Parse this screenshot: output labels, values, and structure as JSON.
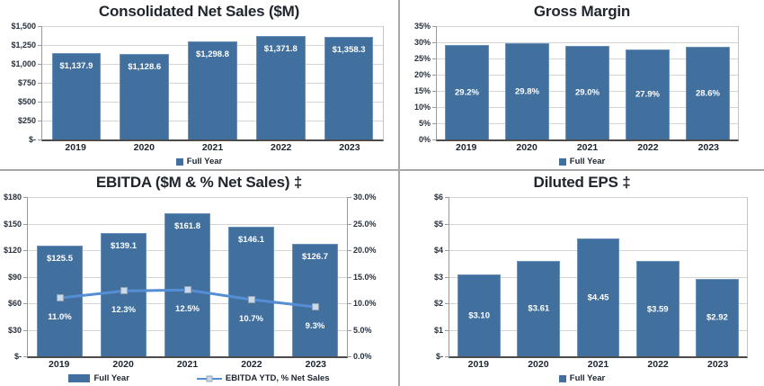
{
  "colors": {
    "bar_fill": "#41709f",
    "bar_edge": "#6a92ba",
    "line": "#558ed5",
    "marker_fill": "#c9d9ea",
    "marker_edge": "#94a4b4",
    "grid": "#d4d4d4",
    "axis": "#9a9a9a",
    "baseline": "#4c4c4c",
    "divider": "#a8a8a8",
    "title_text": "#20262e",
    "tick_text": "#27303d",
    "data_label_text": "#ffffff"
  },
  "chart_data": [
    {
      "id": "net-sales",
      "type": "bar",
      "title": "Consolidated Net Sales ($M)",
      "categories": [
        "2019",
        "2020",
        "2021",
        "2022",
        "2023"
      ],
      "values": [
        1137.9,
        1128.6,
        1298.8,
        1371.8,
        1358.3
      ],
      "value_labels": [
        "$1,137.9",
        "$1,128.6",
        "$1,298.8",
        "$1,371.8",
        "$1,358.3"
      ],
      "label_position": "inside-top",
      "ylim": [
        0,
        1500
      ],
      "ytick_labels": [
        "$-",
        "$250",
        "$500",
        "$750",
        "$1,000",
        "$1,250",
        "$1,500"
      ],
      "grid": true,
      "legend_position": "bottom",
      "legend": [
        {
          "swatch": "square",
          "label": "Full Year"
        }
      ]
    },
    {
      "id": "gross-margin",
      "type": "bar",
      "title": "Gross Margin",
      "categories": [
        "2019",
        "2020",
        "2021",
        "2022",
        "2023"
      ],
      "values": [
        29.2,
        29.8,
        29.0,
        27.9,
        28.6
      ],
      "value_labels": [
        "29.2%",
        "29.8%",
        "29.0%",
        "27.9%",
        "28.6%"
      ],
      "label_position": "center",
      "ylim": [
        0,
        35
      ],
      "ytick_labels": [
        "0%",
        "5%",
        "10%",
        "15%",
        "20%",
        "25%",
        "30%",
        "35%"
      ],
      "grid": true,
      "legend_position": "bottom",
      "legend": [
        {
          "swatch": "square",
          "label": "Full Year"
        }
      ]
    },
    {
      "id": "ebitda",
      "type": "bar+line",
      "title": "EBITDA ($M & % Net Sales) ‡",
      "categories": [
        "2019",
        "2020",
        "2021",
        "2022",
        "2023"
      ],
      "values": [
        125.5,
        139.1,
        161.8,
        146.1,
        126.7
      ],
      "value_labels": [
        "$125.5",
        "$139.1",
        "$161.8",
        "$146.1",
        "$126.7"
      ],
      "label_position": "inside-top",
      "ylim": [
        0,
        180
      ],
      "ytick_labels": [
        "$-",
        "$30",
        "$60",
        "$90",
        "$120",
        "$150",
        "$180"
      ],
      "right_ytick_labels": [
        "0.0%",
        "5.0%",
        "10.0%",
        "15.0%",
        "20.0%",
        "25.0%",
        "30.0%"
      ],
      "grid": true,
      "line_series": {
        "name": "EBITDA YTD, % Net Sales",
        "values": [
          11.0,
          12.3,
          12.5,
          10.7,
          9.3
        ],
        "value_labels": [
          "11.0%",
          "12.3%",
          "12.5%",
          "10.7%",
          "9.3%"
        ],
        "ylim": [
          0,
          30
        ]
      },
      "legend_position": "bottom",
      "legend": [
        {
          "swatch": "bar",
          "label": "Full Year"
        },
        {
          "swatch": "line-marker",
          "label": "EBITDA YTD, % Net Sales"
        }
      ]
    },
    {
      "id": "eps",
      "type": "bar",
      "title": "Diluted EPS ‡",
      "categories": [
        "2019",
        "2020",
        "2021",
        "2022",
        "2023"
      ],
      "values": [
        3.1,
        3.61,
        4.45,
        3.59,
        2.92
      ],
      "value_labels": [
        "$3.10",
        "$3.61",
        "$4.45",
        "$3.59",
        "$2.92"
      ],
      "label_position": "center",
      "ylim": [
        0,
        6
      ],
      "ytick_labels": [
        "$-",
        "$1",
        "$2",
        "$3",
        "$4",
        "$5",
        "$6"
      ],
      "grid": true,
      "legend_position": "bottom",
      "legend": [
        {
          "swatch": "square",
          "label": "Full Year"
        }
      ]
    }
  ]
}
